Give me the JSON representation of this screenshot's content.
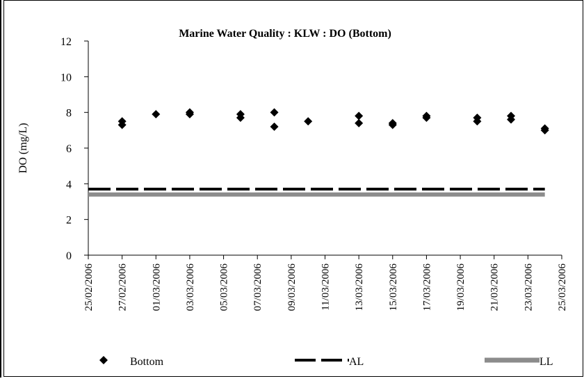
{
  "chart_data": {
    "type": "scatter",
    "title": "Marine Water Quality : KLW : DO (Bottom)",
    "xlabel": "",
    "ylabel": "DO (mg/L)",
    "ylim": [
      0,
      12
    ],
    "xlim": [
      "25/02/2006",
      "25/03/2006"
    ],
    "yticks": [
      "0",
      "2",
      "4",
      "6",
      "8",
      "10",
      "12"
    ],
    "xticks": [
      "25/02/2006",
      "27/02/2006",
      "01/03/2006",
      "03/03/2006",
      "05/03/2006",
      "07/03/2006",
      "09/03/2006",
      "11/03/2006",
      "13/03/2006",
      "15/03/2006",
      "17/03/2006",
      "19/03/2006",
      "21/03/2006",
      "23/03/2006",
      "25/03/2006"
    ],
    "grid": false,
    "legend_position": "bottom",
    "series": [
      {
        "name": "Bottom",
        "marker": "diamond",
        "color": "#000000",
        "points": [
          {
            "x": "27/02/2006",
            "y": 7.5
          },
          {
            "x": "27/02/2006",
            "y": 7.3
          },
          {
            "x": "01/03/2006",
            "y": 7.9
          },
          {
            "x": "03/03/2006",
            "y": 8.0
          },
          {
            "x": "03/03/2006",
            "y": 7.9
          },
          {
            "x": "06/03/2006",
            "y": 7.9
          },
          {
            "x": "06/03/2006",
            "y": 7.7
          },
          {
            "x": "08/03/2006",
            "y": 8.0
          },
          {
            "x": "08/03/2006",
            "y": 7.2
          },
          {
            "x": "10/03/2006",
            "y": 7.5
          },
          {
            "x": "13/03/2006",
            "y": 7.8
          },
          {
            "x": "13/03/2006",
            "y": 7.4
          },
          {
            "x": "15/03/2006",
            "y": 7.4
          },
          {
            "x": "15/03/2006",
            "y": 7.3
          },
          {
            "x": "17/03/2006",
            "y": 7.8
          },
          {
            "x": "17/03/2006",
            "y": 7.7
          },
          {
            "x": "20/03/2006",
            "y": 7.7
          },
          {
            "x": "20/03/2006",
            "y": 7.5
          },
          {
            "x": "22/03/2006",
            "y": 7.8
          },
          {
            "x": "22/03/2006",
            "y": 7.6
          },
          {
            "x": "24/03/2006",
            "y": 7.1
          },
          {
            "x": "24/03/2006",
            "y": 7.0
          }
        ]
      },
      {
        "name": "AL",
        "style": "dashed",
        "color": "#000000",
        "points": [
          {
            "x": "25/02/2006",
            "y": 3.7
          },
          {
            "x": "24/03/2006",
            "y": 3.7
          }
        ]
      },
      {
        "name": "LL",
        "style": "solid",
        "color": "#8c8c8c",
        "points": [
          {
            "x": "25/02/2006",
            "y": 3.4
          },
          {
            "x": "24/03/2006",
            "y": 3.4
          }
        ]
      }
    ]
  }
}
